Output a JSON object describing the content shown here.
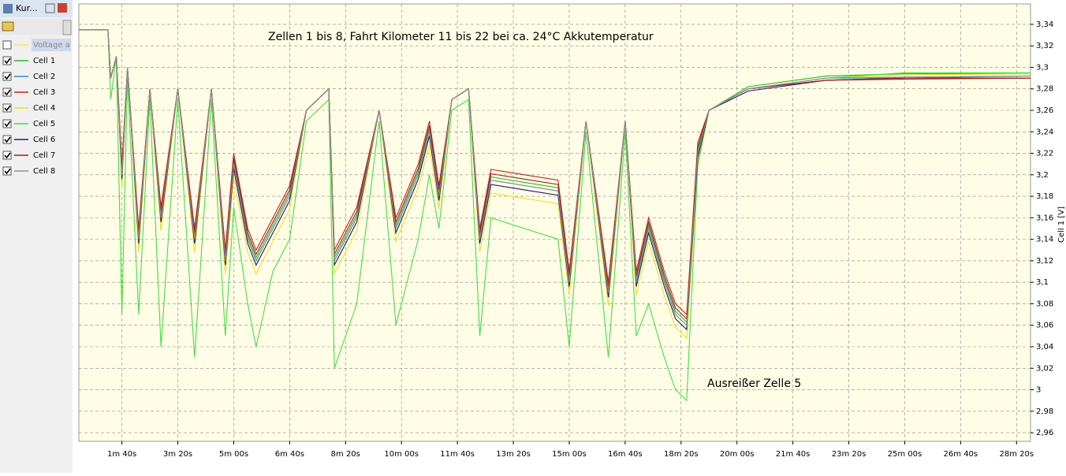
{
  "panel": {
    "title": "Kur..."
  },
  "chart_data": {
    "type": "line",
    "annotations": [
      "Zellen 1 bis 8, Fahrt Kilometer 11 bis 22 bei ca. 24°C Akkutemperatur",
      "Ausreißer Zelle 5"
    ],
    "y_label": "Cell 1 [V]",
    "x": [
      23,
      75,
      80,
      90,
      100,
      110,
      130,
      150,
      170,
      200,
      230,
      260,
      285,
      300,
      325,
      340,
      370,
      400,
      430,
      470,
      480,
      520,
      560,
      590,
      630,
      650,
      667,
      690,
      720,
      740,
      760,
      820,
      880,
      900,
      930,
      970,
      1000,
      1020,
      1042,
      1070,
      1090,
      1110,
      1130,
      1150,
      1220,
      1360,
      1500,
      1725
    ],
    "xlim": [
      23,
      1725
    ],
    "xticks": [
      {
        "value": 100,
        "label": "1m 40s"
      },
      {
        "value": 200,
        "label": "3m 20s"
      },
      {
        "value": 300,
        "label": "5m 00s"
      },
      {
        "value": 400,
        "label": "6m 40s"
      },
      {
        "value": 500,
        "label": "8m 20s"
      },
      {
        "value": 600,
        "label": "10m 00s"
      },
      {
        "value": 700,
        "label": "11m 40s"
      },
      {
        "value": 800,
        "label": "13m 20s"
      },
      {
        "value": 900,
        "label": "15m 00s"
      },
      {
        "value": 1000,
        "label": "16m 40s"
      },
      {
        "value": 1100,
        "label": "18m 20s"
      },
      {
        "value": 1200,
        "label": "20m 00s"
      },
      {
        "value": 1300,
        "label": "21m 40s"
      },
      {
        "value": 1400,
        "label": "23m 20s"
      },
      {
        "value": 1500,
        "label": "25m 00s"
      },
      {
        "value": 1600,
        "label": "26m 40s"
      },
      {
        "value": 1700,
        "label": "28m 20s"
      }
    ],
    "ylim": [
      2.952,
      3.359
    ],
    "yticks": [
      {
        "value": 2.96,
        "label": "2,96"
      },
      {
        "value": 2.98,
        "label": "2,98"
      },
      3,
      {
        "value": 3.02,
        "label": "3,02"
      },
      {
        "value": 3.04,
        "label": "3,04"
      },
      {
        "value": 3.06,
        "label": "3,06"
      },
      {
        "value": 3.08,
        "label": "3,08"
      },
      {
        "value": 3.1,
        "label": "3,1"
      },
      {
        "value": 3.12,
        "label": "3,12"
      },
      {
        "value": 3.14,
        "label": "3,14"
      },
      {
        "value": 3.16,
        "label": "3,16"
      },
      {
        "value": 3.18,
        "label": "3,18"
      },
      {
        "value": 3.2,
        "label": "3,2"
      },
      {
        "value": 3.22,
        "label": "3,22"
      },
      {
        "value": 3.24,
        "label": "3,24"
      },
      {
        "value": 3.26,
        "label": "3,26"
      },
      {
        "value": 3.28,
        "label": "3,28"
      },
      {
        "value": 3.3,
        "label": "3,3"
      },
      {
        "value": 3.32,
        "label": "3,32"
      },
      {
        "value": 3.34,
        "label": "3,34"
      }
    ],
    "grid": true,
    "hidden_series": [
      {
        "name": "Voltage a",
        "color": "#e8e860"
      }
    ],
    "series": [
      {
        "name": "Cell 1",
        "color": "#22bb22",
        "values": [
          3.335,
          3.335,
          3.29,
          3.31,
          3.203,
          3.3,
          3.143,
          3.28,
          3.163,
          3.28,
          3.143,
          3.28,
          3.123,
          3.213,
          3.143,
          3.123,
          3.153,
          3.183,
          3.26,
          3.28,
          3.123,
          3.163,
          3.26,
          3.153,
          3.203,
          3.243,
          3.183,
          3.27,
          3.28,
          3.143,
          3.198,
          3.193,
          3.188,
          3.103,
          3.25,
          3.093,
          3.25,
          3.103,
          3.153,
          3.103,
          3.073,
          3.063,
          3.223,
          3.26,
          3.282,
          3.292,
          3.294,
          3.294
        ]
      },
      {
        "name": "Cell 2",
        "color": "#2a8fb8",
        "values": [
          3.335,
          3.335,
          3.29,
          3.31,
          3.2,
          3.3,
          3.14,
          3.28,
          3.16,
          3.28,
          3.14,
          3.28,
          3.12,
          3.21,
          3.14,
          3.12,
          3.15,
          3.18,
          3.26,
          3.28,
          3.12,
          3.16,
          3.26,
          3.15,
          3.2,
          3.24,
          3.18,
          3.27,
          3.28,
          3.14,
          3.195,
          3.19,
          3.185,
          3.1,
          3.25,
          3.09,
          3.25,
          3.1,
          3.15,
          3.1,
          3.07,
          3.06,
          3.22,
          3.26,
          3.28,
          3.29,
          3.29,
          3.292
        ]
      },
      {
        "name": "Cell 3",
        "color": "#c02020",
        "values": [
          3.335,
          3.335,
          3.29,
          3.31,
          3.21,
          3.3,
          3.15,
          3.28,
          3.17,
          3.28,
          3.15,
          3.28,
          3.13,
          3.22,
          3.15,
          3.13,
          3.16,
          3.19,
          3.26,
          3.28,
          3.13,
          3.17,
          3.26,
          3.16,
          3.21,
          3.25,
          3.19,
          3.27,
          3.28,
          3.15,
          3.205,
          3.2,
          3.195,
          3.11,
          3.25,
          3.1,
          3.25,
          3.11,
          3.16,
          3.11,
          3.08,
          3.07,
          3.23,
          3.26,
          3.28,
          3.288,
          3.289,
          3.29
        ]
      },
      {
        "name": "Cell 4",
        "color": "#f0e020",
        "values": [
          3.335,
          3.335,
          3.29,
          3.31,
          3.188,
          3.3,
          3.128,
          3.28,
          3.148,
          3.28,
          3.128,
          3.28,
          3.108,
          3.198,
          3.128,
          3.108,
          3.138,
          3.168,
          3.26,
          3.28,
          3.108,
          3.148,
          3.26,
          3.138,
          3.188,
          3.228,
          3.168,
          3.27,
          3.28,
          3.128,
          3.183,
          3.178,
          3.173,
          3.088,
          3.25,
          3.078,
          3.25,
          3.088,
          3.138,
          3.088,
          3.058,
          3.048,
          3.208,
          3.26,
          3.28,
          3.29,
          3.293,
          3.294
        ]
      },
      {
        "name": "Cell 5",
        "color": "#44dd44",
        "values": [
          3.335,
          3.335,
          3.27,
          3.31,
          3.07,
          3.29,
          3.07,
          3.27,
          3.04,
          3.27,
          3.03,
          3.27,
          3.05,
          3.17,
          3.08,
          3.04,
          3.11,
          3.14,
          3.25,
          3.27,
          3.02,
          3.08,
          3.25,
          3.06,
          3.14,
          3.2,
          3.15,
          3.26,
          3.27,
          3.05,
          3.16,
          3.15,
          3.14,
          3.04,
          3.24,
          3.03,
          3.24,
          3.05,
          3.08,
          3.03,
          3.0,
          2.99,
          3.21,
          3.26,
          3.28,
          3.29,
          3.295,
          3.295
        ]
      },
      {
        "name": "Cell 6",
        "color": "#1a1a70",
        "values": [
          3.335,
          3.335,
          3.29,
          3.31,
          3.196,
          3.3,
          3.136,
          3.28,
          3.156,
          3.28,
          3.136,
          3.28,
          3.116,
          3.206,
          3.136,
          3.116,
          3.146,
          3.176,
          3.26,
          3.28,
          3.116,
          3.156,
          3.26,
          3.146,
          3.196,
          3.236,
          3.176,
          3.27,
          3.28,
          3.136,
          3.191,
          3.186,
          3.181,
          3.096,
          3.25,
          3.086,
          3.25,
          3.096,
          3.146,
          3.096,
          3.066,
          3.056,
          3.216,
          3.26,
          3.278,
          3.288,
          3.29,
          3.29
        ]
      },
      {
        "name": "Cell 7",
        "color": "#a02020",
        "values": [
          3.335,
          3.335,
          3.29,
          3.31,
          3.206,
          3.3,
          3.146,
          3.28,
          3.166,
          3.28,
          3.146,
          3.28,
          3.126,
          3.216,
          3.146,
          3.126,
          3.156,
          3.186,
          3.26,
          3.28,
          3.126,
          3.166,
          3.26,
          3.156,
          3.206,
          3.246,
          3.186,
          3.27,
          3.28,
          3.146,
          3.201,
          3.196,
          3.191,
          3.106,
          3.25,
          3.096,
          3.25,
          3.106,
          3.156,
          3.106,
          3.076,
          3.066,
          3.226,
          3.26,
          3.28,
          3.288,
          3.29,
          3.29
        ]
      },
      {
        "name": "Cell 8",
        "color": "#909090",
        "values": [
          3.335,
          3.335,
          3.29,
          3.31,
          3.2,
          3.3,
          3.14,
          3.28,
          3.16,
          3.28,
          3.14,
          3.28,
          3.12,
          3.21,
          3.14,
          3.12,
          3.15,
          3.18,
          3.26,
          3.28,
          3.12,
          3.16,
          3.26,
          3.15,
          3.2,
          3.24,
          3.18,
          3.27,
          3.28,
          3.14,
          3.195,
          3.19,
          3.185,
          3.1,
          3.25,
          3.09,
          3.25,
          3.1,
          3.15,
          3.1,
          3.07,
          3.06,
          3.22,
          3.26,
          3.28,
          3.29,
          3.291,
          3.292
        ]
      }
    ]
  }
}
